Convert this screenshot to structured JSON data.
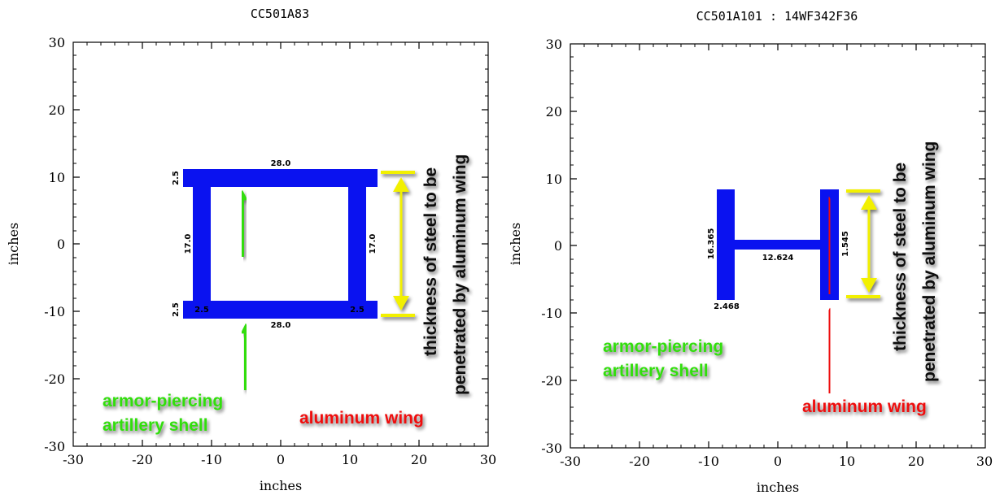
{
  "panels": [
    {
      "title": "CC501A83",
      "xlabel": "inches",
      "ylabel": "inches",
      "xticks": [
        "-30",
        "-20",
        "-10",
        "0",
        "10",
        "20",
        "30"
      ],
      "yticks": [
        "30",
        "20",
        "10",
        "0",
        "-10",
        "-20",
        "-30"
      ],
      "dims": {
        "top_width": "28.0",
        "bottom_width": "28.0",
        "left_height": "17.0",
        "right_height": "17.0",
        "top_flange": "2.5",
        "bottom_flange": "2.5",
        "left_web": "2.5",
        "right_web": "2.5"
      },
      "shell_label": [
        "armor-piercing",
        "artillery shell"
      ],
      "wing_label": "aluminum wing",
      "thickness_label": [
        "thickness of steel to be",
        "penetrated by aluminum wing"
      ]
    },
    {
      "title": "CC501A101 : 14WF342F36",
      "xlabel": "inches",
      "ylabel": "inches",
      "xticks": [
        "-30",
        "-20",
        "-10",
        "0",
        "10",
        "20",
        "30"
      ],
      "yticks": [
        "30",
        "20",
        "10",
        "0",
        "-10",
        "-20",
        "-30"
      ],
      "dims": {
        "flange_height": "16.365",
        "web_width": "12.624",
        "flange_thickness": "2.468",
        "web_thickness": "1.545"
      },
      "shell_label": [
        "armor-piercing",
        "artillery shell"
      ],
      "wing_label": "aluminum wing",
      "thickness_label": [
        "thickness of steel to be",
        "penetrated by aluminum wing"
      ]
    }
  ],
  "colors": {
    "steel": "#0a12f0",
    "shell": "#33dd11",
    "wing": "#ee1111",
    "thickness": "#f2f000"
  }
}
